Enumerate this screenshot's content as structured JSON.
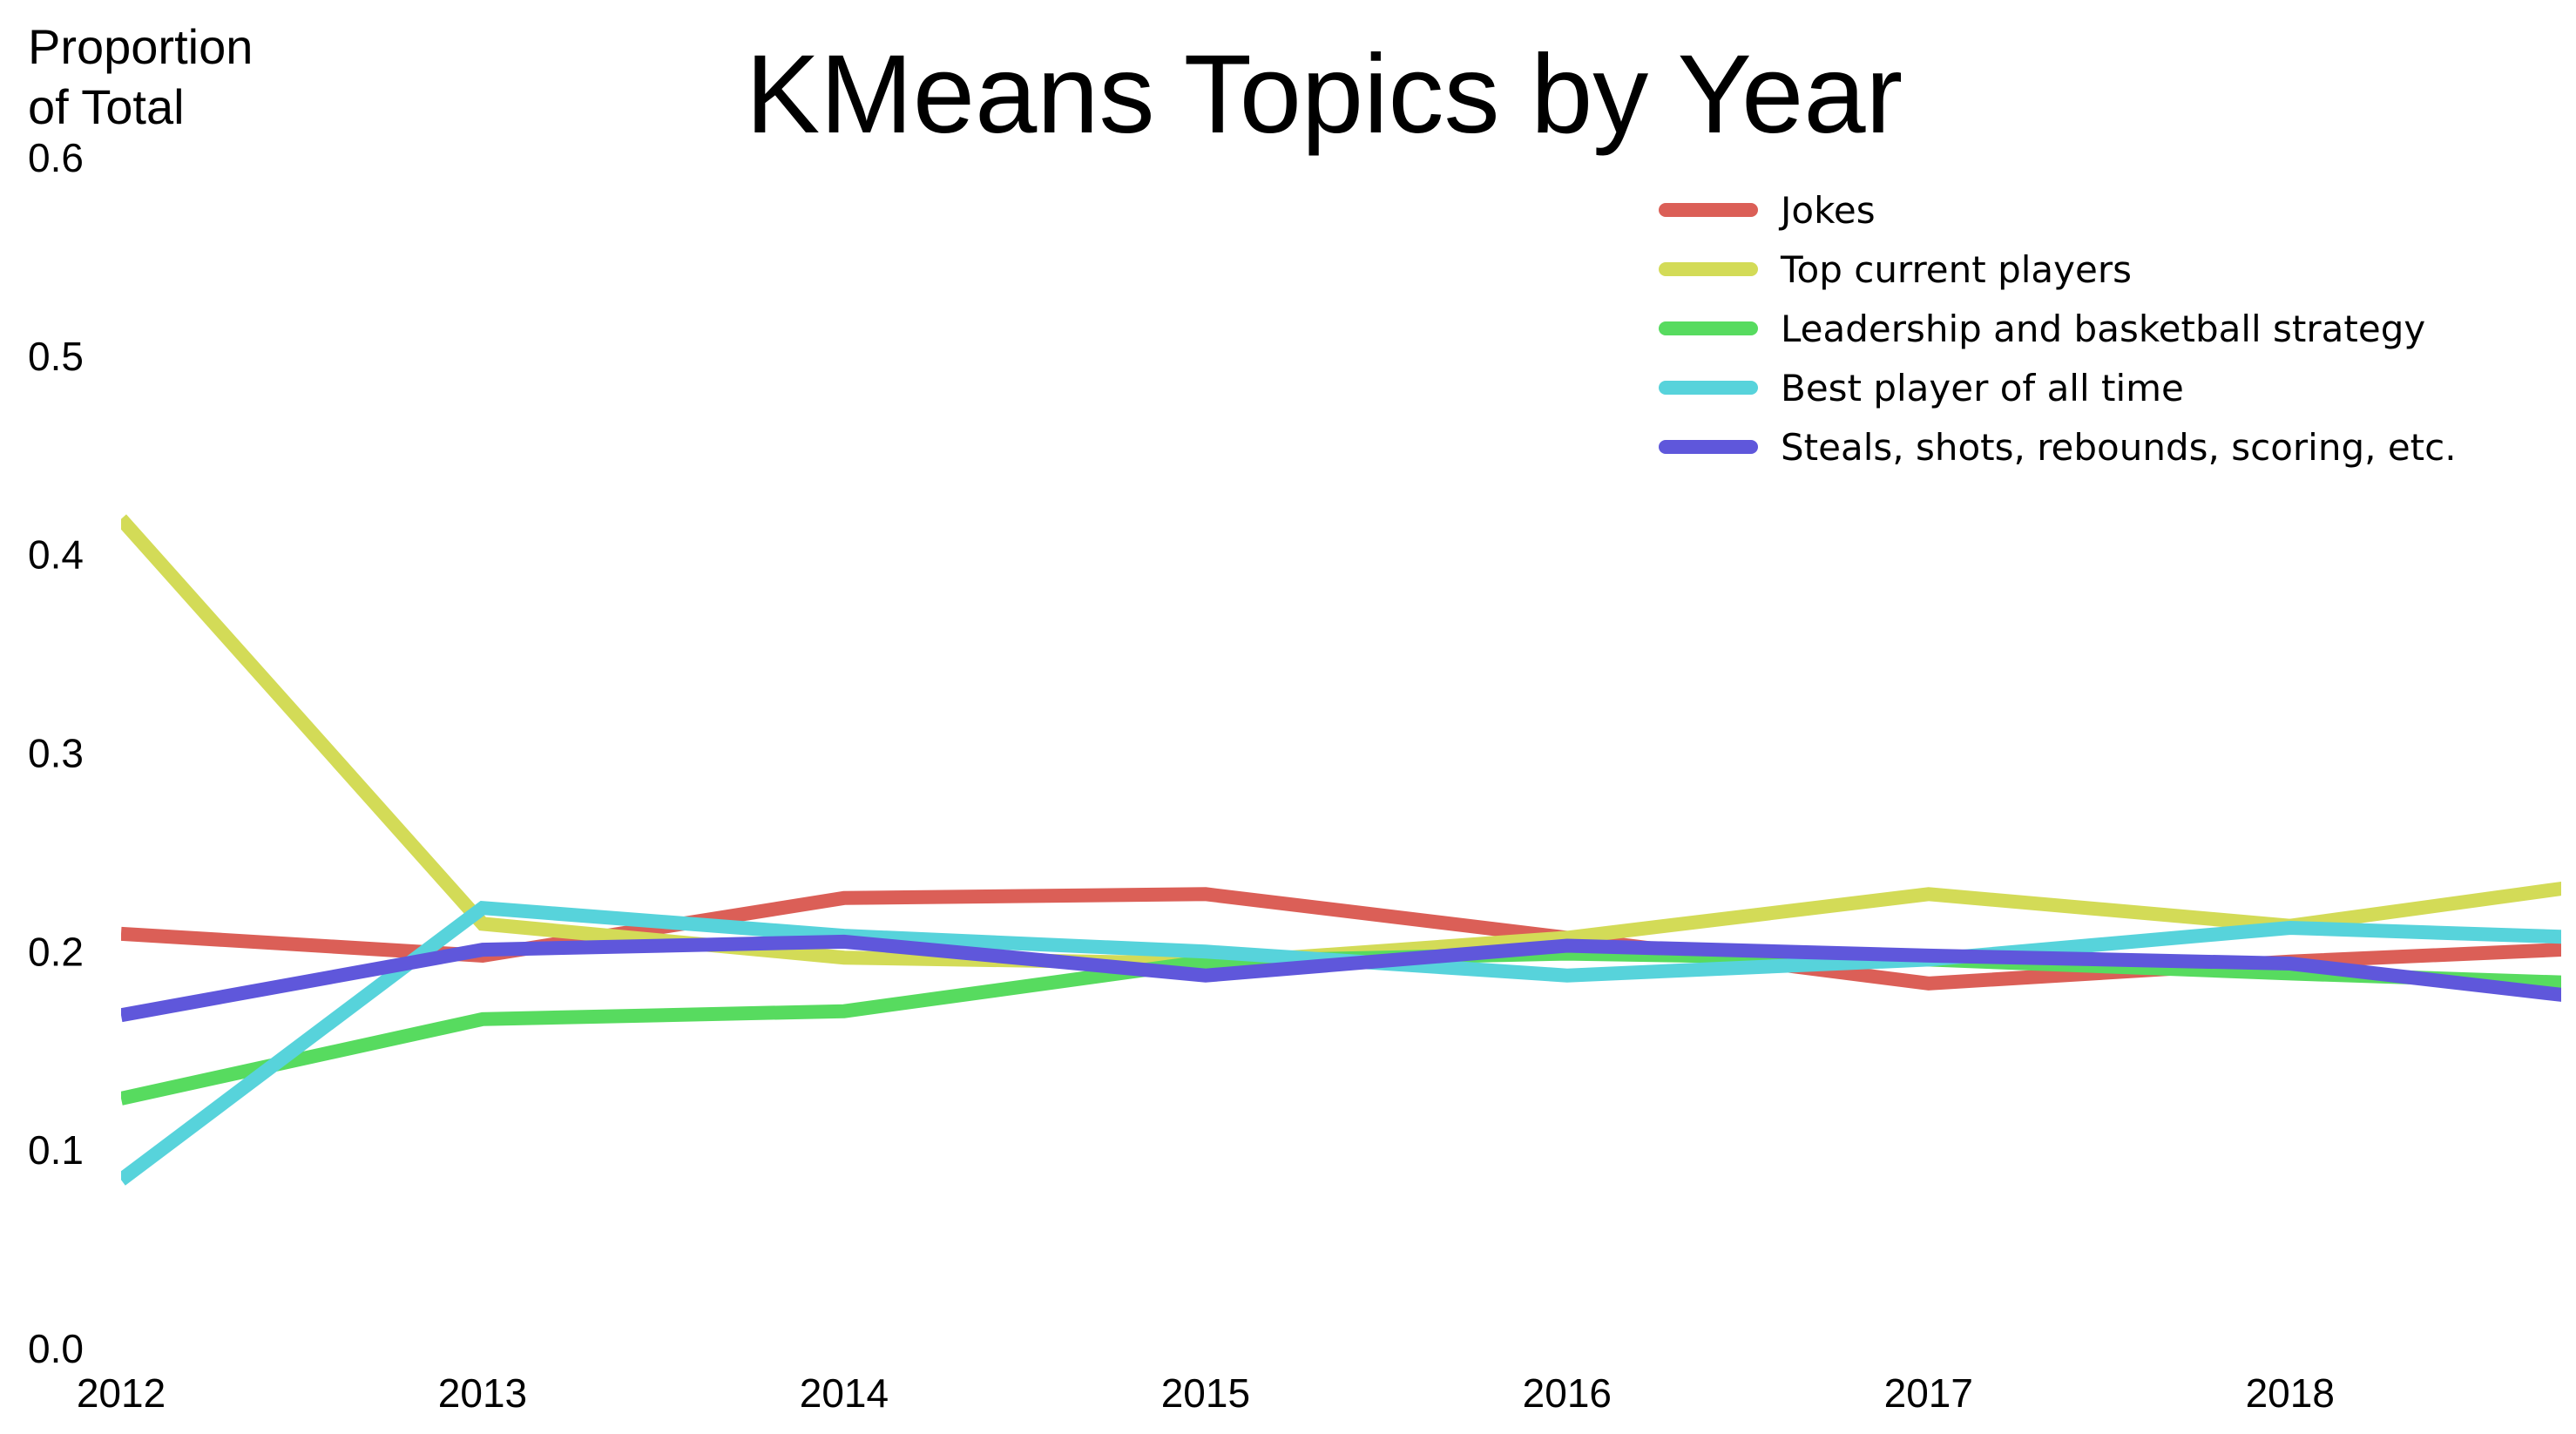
{
  "chart_data": {
    "type": "line",
    "title": "KMeans Topics by Year",
    "ylabel_line1": "Proportion",
    "ylabel_line2": "of Total",
    "xlabel": "",
    "x": [
      2012,
      2013,
      2014,
      2015,
      2016,
      2017,
      2018,
      2019
    ],
    "x_tick_labels": [
      "2012",
      "2013",
      "2014",
      "2015",
      "2016",
      "2017",
      "2018"
    ],
    "y_tick_labels": [
      "0.0",
      "0.1",
      "0.2",
      "0.3",
      "0.4",
      "0.5",
      "0.6"
    ],
    "y_ticks": [
      0.0,
      0.1,
      0.2,
      0.3,
      0.4,
      0.5,
      0.6
    ],
    "xlim": [
      2012,
      2018.75
    ],
    "ylim": [
      0.0,
      0.6
    ],
    "grid": false,
    "legend_position": "top-right",
    "series": [
      {
        "name": "Jokes",
        "color": "#db5f57",
        "values": [
          0.209,
          0.198,
          0.227,
          0.229,
          0.207,
          0.184,
          0.195,
          0.203
        ]
      },
      {
        "name": "Top current players",
        "color": "#d3db57",
        "values": [
          0.418,
          0.214,
          0.197,
          0.194,
          0.207,
          0.229,
          0.213,
          0.238
        ]
      },
      {
        "name": "Leadership and basketball strategy",
        "color": "#57db5f",
        "values": [
          0.126,
          0.166,
          0.17,
          0.195,
          0.199,
          0.196,
          0.189,
          0.183
        ]
      },
      {
        "name": "Best player of all time",
        "color": "#57d3db",
        "values": [
          0.085,
          0.222,
          0.208,
          0.2,
          0.188,
          0.196,
          0.212,
          0.206
        ]
      },
      {
        "name": "Steals, shots, rebounds, scoring, etc.",
        "color": "#5f57db",
        "values": [
          0.168,
          0.201,
          0.205,
          0.188,
          0.203,
          0.198,
          0.194,
          0.173
        ]
      }
    ]
  }
}
